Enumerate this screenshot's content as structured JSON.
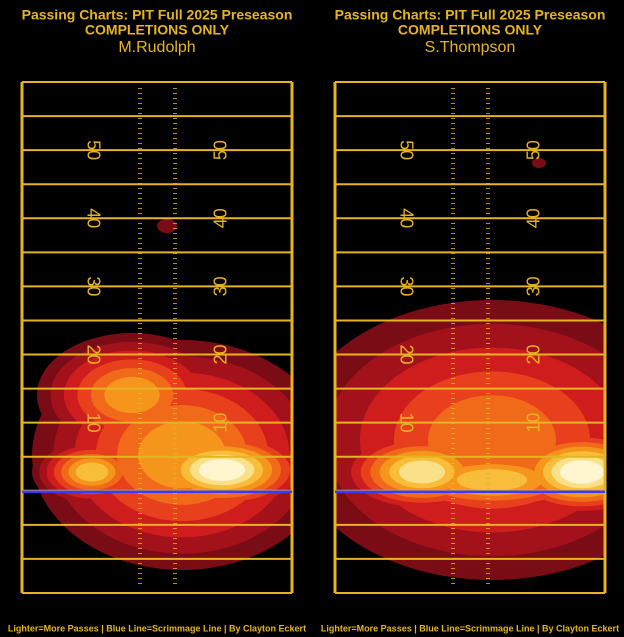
{
  "panels": [
    {
      "title": "Passing Charts: PIT Full 2025 Preseason",
      "subtitle": "COMPLETIONS ONLY",
      "player": "M.Rudolph"
    },
    {
      "title": "Passing Charts: PIT Full 2025 Preseason",
      "subtitle": "COMPLETIONS ONLY",
      "player": "S.Thompson"
    }
  ],
  "yard_numbers": [
    "50",
    "40",
    "30",
    "20",
    "10"
  ],
  "footer": "Lighter=More Passes | Blue Line=Scrimmage Line | By Clayton Eckert"
}
